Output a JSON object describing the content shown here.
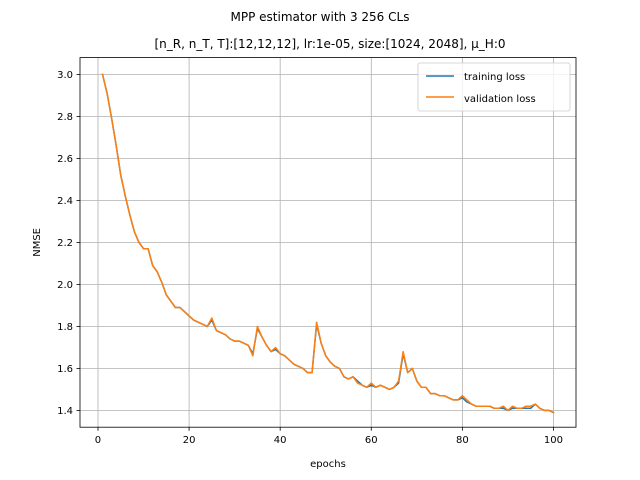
{
  "chart_data": {
    "type": "line",
    "title": "MPP estimator with 3 256 CLs",
    "subtitle": "[n_R, n_T, T]:[12,12,12], lr:1e-05, size:[1024, 2048], μ_H:0",
    "xlabel": "epochs",
    "ylabel": "NMSE",
    "xlim": [
      -3.95,
      104.95
    ],
    "ylim": [
      1.32,
      3.08
    ],
    "xticks": [
      0,
      20,
      40,
      60,
      80,
      100
    ],
    "yticks": [
      1.4,
      1.6,
      1.8,
      2.0,
      2.2,
      2.4,
      2.6,
      2.8,
      3.0
    ],
    "xtick_labels": [
      "0",
      "20",
      "40",
      "60",
      "80",
      "100"
    ],
    "ytick_labels": [
      "1.4",
      "1.6",
      "1.8",
      "2.0",
      "2.2",
      "2.4",
      "2.6",
      "2.8",
      "3.0"
    ],
    "grid": true,
    "legend_position": "upper right",
    "x": [
      1,
      2,
      3,
      4,
      5,
      6,
      7,
      8,
      9,
      10,
      11,
      12,
      13,
      14,
      15,
      16,
      17,
      18,
      19,
      20,
      21,
      22,
      23,
      24,
      25,
      26,
      27,
      28,
      29,
      30,
      31,
      32,
      33,
      34,
      35,
      36,
      37,
      38,
      39,
      40,
      41,
      42,
      43,
      44,
      45,
      46,
      47,
      48,
      49,
      50,
      51,
      52,
      53,
      54,
      55,
      56,
      57,
      58,
      59,
      60,
      61,
      62,
      63,
      64,
      65,
      66,
      67,
      68,
      69,
      70,
      71,
      72,
      73,
      74,
      75,
      76,
      77,
      78,
      79,
      80,
      81,
      82,
      83,
      84,
      85,
      86,
      87,
      88,
      89,
      90,
      91,
      92,
      93,
      94,
      95,
      96,
      97,
      98,
      99,
      100
    ],
    "series": [
      {
        "name": "training loss",
        "color": "#1f77b4",
        "values": [
          3.0,
          2.91,
          2.79,
          2.66,
          2.52,
          2.42,
          2.33,
          2.25,
          2.2,
          2.17,
          2.17,
          2.09,
          2.06,
          2.01,
          1.95,
          1.92,
          1.89,
          1.89,
          1.87,
          1.85,
          1.83,
          1.82,
          1.81,
          1.8,
          1.83,
          1.78,
          1.77,
          1.76,
          1.74,
          1.73,
          1.73,
          1.72,
          1.71,
          1.67,
          1.79,
          1.75,
          1.71,
          1.68,
          1.69,
          1.67,
          1.66,
          1.64,
          1.62,
          1.61,
          1.6,
          1.58,
          1.58,
          1.81,
          1.72,
          1.66,
          1.63,
          1.61,
          1.6,
          1.56,
          1.55,
          1.56,
          1.54,
          1.52,
          1.51,
          1.52,
          1.51,
          1.52,
          1.51,
          1.5,
          1.51,
          1.53,
          1.67,
          1.58,
          1.6,
          1.54,
          1.51,
          1.51,
          1.48,
          1.48,
          1.47,
          1.47,
          1.46,
          1.45,
          1.45,
          1.46,
          1.44,
          1.43,
          1.42,
          1.42,
          1.42,
          1.42,
          1.41,
          1.41,
          1.41,
          1.4,
          1.41,
          1.41,
          1.41,
          1.41,
          1.41,
          1.43,
          1.41,
          1.4,
          1.4,
          1.39
        ]
      },
      {
        "name": "validation loss",
        "color": "#ff7f0e",
        "values": [
          3.0,
          2.91,
          2.79,
          2.66,
          2.52,
          2.42,
          2.33,
          2.25,
          2.2,
          2.17,
          2.17,
          2.09,
          2.06,
          2.01,
          1.95,
          1.92,
          1.89,
          1.89,
          1.87,
          1.85,
          1.83,
          1.82,
          1.81,
          1.8,
          1.84,
          1.78,
          1.77,
          1.76,
          1.74,
          1.73,
          1.73,
          1.72,
          1.71,
          1.66,
          1.8,
          1.75,
          1.71,
          1.68,
          1.7,
          1.67,
          1.66,
          1.64,
          1.62,
          1.61,
          1.6,
          1.58,
          1.58,
          1.82,
          1.72,
          1.66,
          1.63,
          1.61,
          1.6,
          1.56,
          1.55,
          1.56,
          1.53,
          1.52,
          1.51,
          1.53,
          1.51,
          1.52,
          1.51,
          1.5,
          1.51,
          1.54,
          1.68,
          1.58,
          1.6,
          1.54,
          1.51,
          1.51,
          1.48,
          1.48,
          1.47,
          1.47,
          1.46,
          1.45,
          1.45,
          1.47,
          1.45,
          1.43,
          1.42,
          1.42,
          1.42,
          1.42,
          1.41,
          1.41,
          1.42,
          1.4,
          1.42,
          1.41,
          1.41,
          1.42,
          1.42,
          1.43,
          1.41,
          1.4,
          1.4,
          1.39
        ]
      }
    ]
  }
}
